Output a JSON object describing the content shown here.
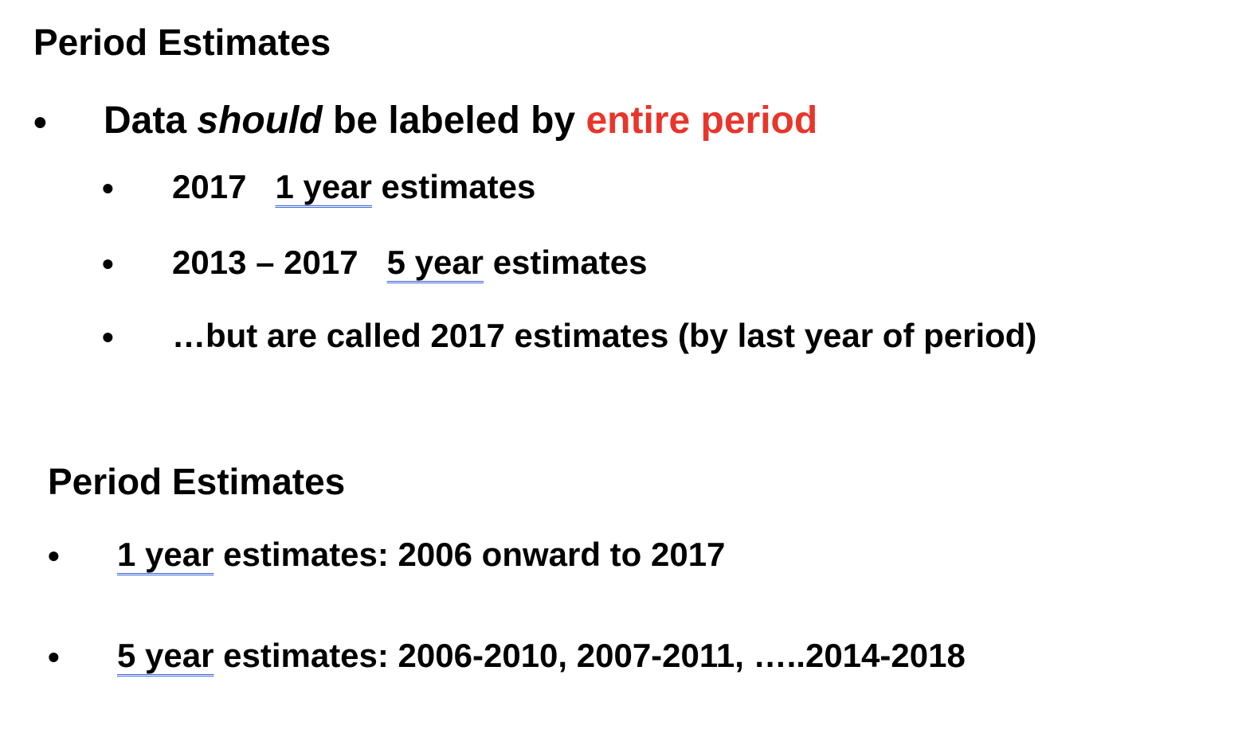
{
  "section1": {
    "title": "Period Estimates",
    "main_bullet": {
      "symbol": "•",
      "part1": "Data ",
      "part2_italic": "should",
      "part3": " be labeled by ",
      "part4_red": "entire period"
    },
    "sub_bullets": [
      {
        "symbol": "•",
        "prefix": "2017",
        "underlined": "1 year",
        "suffix": " estimates"
      },
      {
        "symbol": "•",
        "prefix": "2013 – 2017",
        "underlined": "5 year",
        "suffix": " estimates"
      },
      {
        "symbol": "•",
        "text": "…but are called 2017 estimates (by last year of period)"
      }
    ]
  },
  "section2": {
    "title": "Period Estimates",
    "bullets": [
      {
        "symbol": "•",
        "underlined": "1 year",
        "suffix": " estimates:  2006 onward to 2017"
      },
      {
        "symbol": "•",
        "underlined": "5 year",
        "suffix": " estimates:  2006-2010, 2007-2011, …..2014-2018"
      }
    ]
  },
  "colors": {
    "text": "#000000",
    "emphasis": "#e8352b",
    "underline": "#3a63d8"
  }
}
